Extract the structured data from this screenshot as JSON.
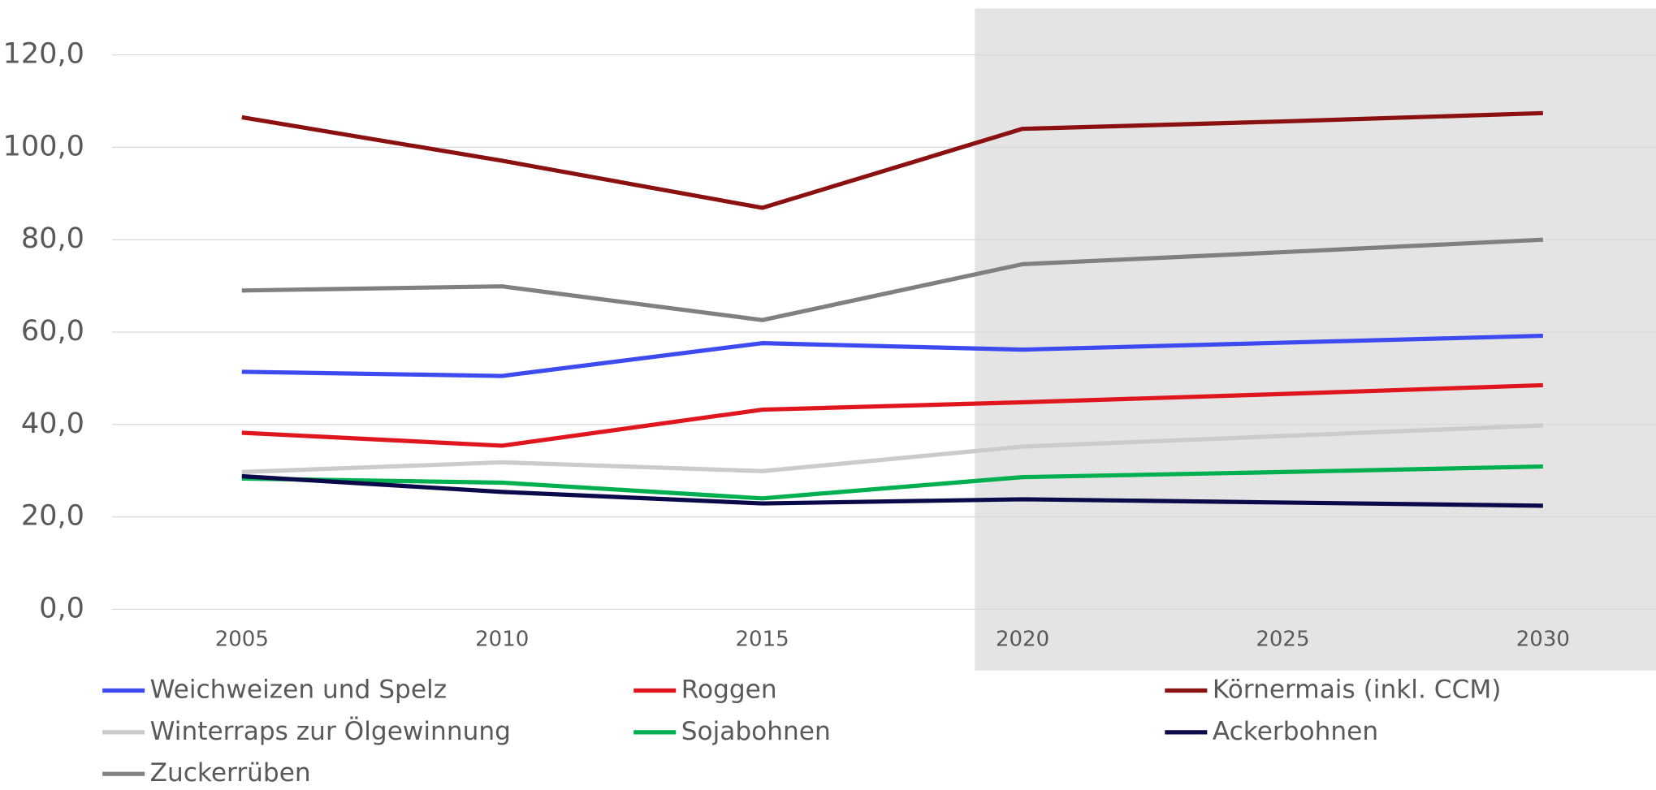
{
  "chart_data": {
    "type": "line",
    "categories": [
      "2005",
      "2010",
      "2015",
      "2020",
      "2025",
      "2030"
    ],
    "ylim": [
      0,
      120
    ],
    "yticks": [
      {
        "value": 0,
        "label": "0,0"
      },
      {
        "value": 20,
        "label": "20,0"
      },
      {
        "value": 40,
        "label": "40,0"
      },
      {
        "value": 60,
        "label": "60,0"
      },
      {
        "value": 80,
        "label": "80,0"
      },
      {
        "value": 100,
        "label": "100,0"
      },
      {
        "value": 120,
        "label": "120,0"
      }
    ],
    "grid": true,
    "series": [
      {
        "name": "Weichweizen und Spelz",
        "color": "#3c4af0",
        "values": [
          51.4,
          50.5,
          57.6,
          56.2,
          57.7,
          59.2
        ]
      },
      {
        "name": "Roggen",
        "color": "#e0161e",
        "values": [
          38.2,
          35.4,
          43.2,
          44.8,
          46.6,
          48.5
        ]
      },
      {
        "name": "Körnermais (inkl. CCM)",
        "color": "#8b1010",
        "values": [
          106.5,
          97.1,
          86.9,
          104.0,
          105.6,
          107.4
        ]
      },
      {
        "name": "Winterraps zur Ölgewinnung",
        "color": "#cbcbcb",
        "values": [
          29.7,
          31.8,
          29.9,
          35.2,
          37.5,
          39.8
        ]
      },
      {
        "name": "Sojabohnen",
        "color": "#00b050",
        "values": [
          28.3,
          27.4,
          24.0,
          28.6,
          29.7,
          30.9
        ]
      },
      {
        "name": "Ackerbohnen",
        "color": "#0a0a4a",
        "values": [
          28.8,
          25.4,
          22.9,
          23.8,
          23.1,
          22.4
        ]
      },
      {
        "name": "Zuckerrüben",
        "color": "#808080",
        "values": [
          69.0,
          69.9,
          62.6,
          74.7,
          77.3,
          80.0
        ]
      }
    ]
  }
}
